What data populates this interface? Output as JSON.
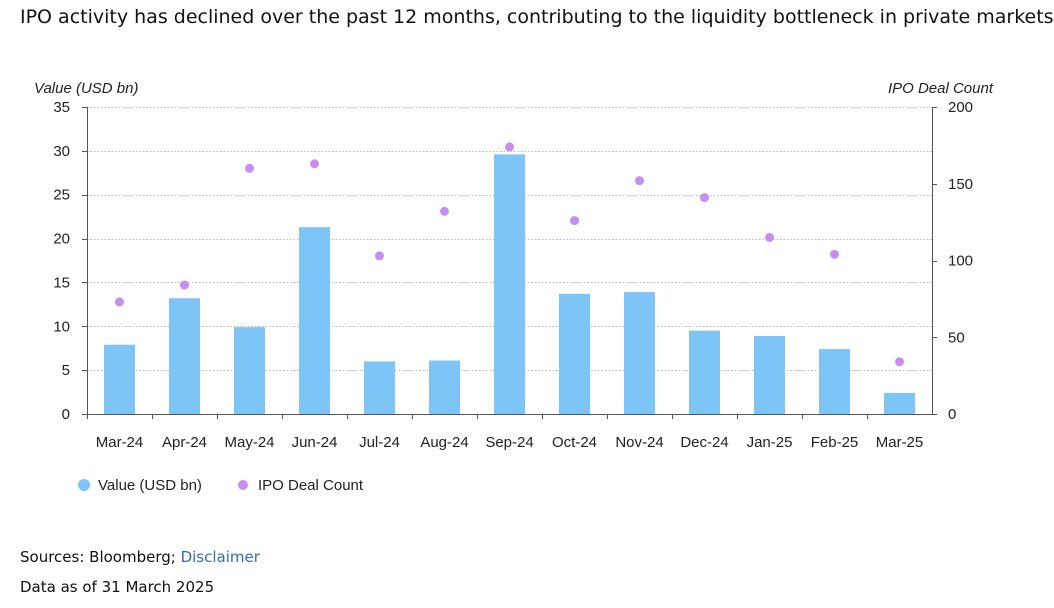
{
  "title": "IPO activity has declined over the past 12 months, contributing to the liquidity bottleneck in private markets",
  "chart_data": {
    "type": "bar",
    "categories": [
      "Mar-24",
      "Apr-24",
      "May-24",
      "Jun-24",
      "Jul-24",
      "Aug-24",
      "Sep-24",
      "Oct-24",
      "Nov-24",
      "Dec-24",
      "Jan-25",
      "Feb-25",
      "Mar-25"
    ],
    "series": [
      {
        "name": "Value (USD bn)",
        "type": "bar",
        "axis": "left",
        "color": "#7dc4f7",
        "values": [
          7.9,
          13.2,
          9.9,
          21.3,
          6.0,
          6.1,
          29.6,
          13.7,
          13.9,
          9.5,
          8.9,
          7.4,
          2.4
        ]
      },
      {
        "name": "IPO Deal Count",
        "type": "scatter",
        "axis": "right",
        "color": "#c58ef2",
        "values": [
          73,
          84,
          160,
          163,
          103,
          132,
          174,
          126,
          152,
          141,
          115,
          104,
          34
        ]
      }
    ],
    "ylabel_left": "Value (USD bn)",
    "ylabel_right": "IPO Deal Count",
    "ylim_left": [
      0,
      35
    ],
    "ylim_right": [
      0,
      200
    ],
    "yticks_left": [
      0,
      5,
      10,
      15,
      20,
      25,
      30,
      35
    ],
    "yticks_right": [
      0,
      50,
      100,
      150,
      200
    ],
    "grid": true,
    "legend_position": "bottom-left"
  },
  "footer": {
    "sources_prefix": "Sources: Bloomberg; ",
    "disclaimer_link": "Disclaimer",
    "data_as_of": "Data as of 31 March 2025"
  }
}
